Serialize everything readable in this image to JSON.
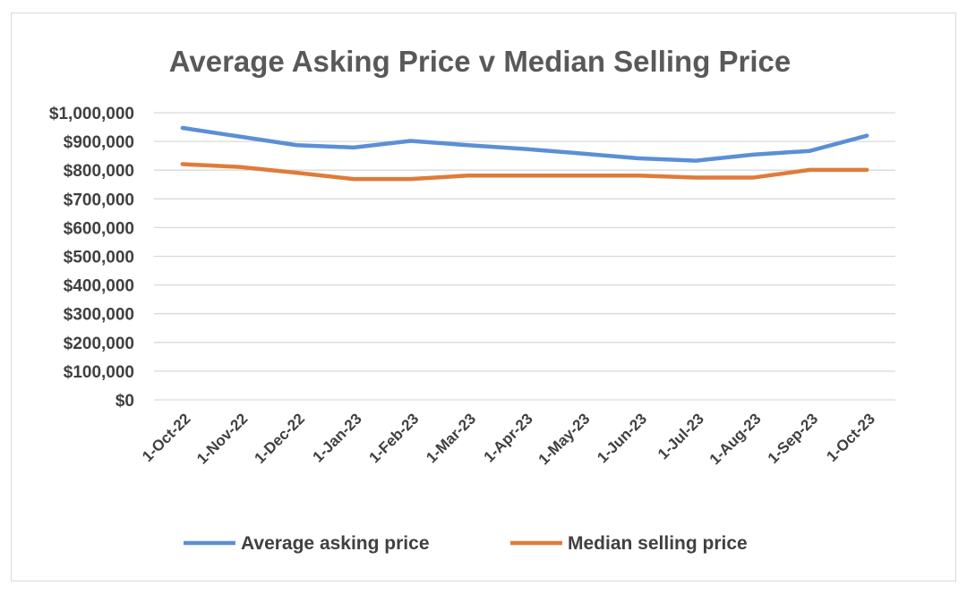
{
  "chart_data": {
    "type": "line",
    "title": "Average Asking Price v Median Selling Price",
    "xlabel": "",
    "ylabel": "",
    "categories": [
      "1-Oct-22",
      "1-Nov-22",
      "1-Dec-22",
      "1-Jan-23",
      "1-Feb-23",
      "1-Mar-23",
      "1-Apr-23",
      "1-May-23",
      "1-Jun-23",
      "1-Jul-23",
      "1-Aug-23",
      "1-Sep-23",
      "1-Oct-23"
    ],
    "ylim": [
      0,
      1000000
    ],
    "yticks": [
      "$0",
      "$100,000",
      "$200,000",
      "$300,000",
      "$400,000",
      "$500,000",
      "$600,000",
      "$700,000",
      "$800,000",
      "$900,000",
      "$1,000,000"
    ],
    "grid": true,
    "legend_position": "bottom",
    "series": [
      {
        "name": "Average asking price",
        "color": "#5b8fd6",
        "values": [
          947000,
          917000,
          887000,
          879000,
          902000,
          887000,
          874000,
          858000,
          841000,
          833000,
          854000,
          867000,
          920000
        ]
      },
      {
        "name": "Median selling price",
        "color": "#e07b39",
        "values": [
          821000,
          811000,
          791000,
          769000,
          769000,
          781000,
          781000,
          781000,
          781000,
          774000,
          774000,
          801000,
          801000
        ]
      }
    ]
  }
}
